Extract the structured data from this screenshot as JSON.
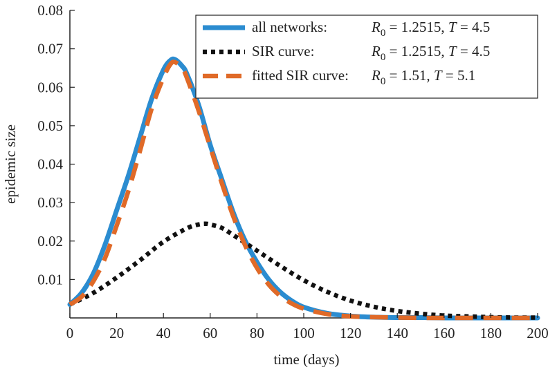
{
  "chart_data": {
    "type": "line",
    "title": "",
    "xlabel": "time (days)",
    "ylabel": "epidemic size",
    "xlim": [
      0,
      200
    ],
    "ylim": [
      0,
      0.08
    ],
    "x_ticks": [
      0,
      20,
      40,
      60,
      80,
      100,
      120,
      140,
      160,
      180,
      200
    ],
    "y_ticks": [
      0.01,
      0.02,
      0.03,
      0.04,
      0.05,
      0.06,
      0.07,
      0.08
    ],
    "x_tick_labels": [
      "0",
      "20",
      "40",
      "60",
      "80",
      "100",
      "120",
      "140",
      "160",
      "180",
      "200"
    ],
    "y_tick_labels": [
      "0.01",
      "0.02",
      "0.03",
      "0.04",
      "0.05",
      "0.06",
      "0.07",
      "0.08"
    ],
    "grid": false,
    "legend_position": "top-right",
    "series": [
      {
        "name": "all networks:",
        "param_r0": "1.2515",
        "param_t": "4.5",
        "color": "#2b8cd0",
        "style": "solid",
        "x": [
          0,
          5,
          10,
          15,
          20,
          25,
          30,
          35,
          40,
          43,
          45,
          48,
          50,
          55,
          60,
          65,
          70,
          75,
          80,
          85,
          90,
          95,
          100,
          110,
          120,
          130,
          140,
          150,
          160,
          170,
          180,
          190,
          200
        ],
        "y": [
          0.0035,
          0.0065,
          0.0115,
          0.019,
          0.028,
          0.037,
          0.047,
          0.057,
          0.0645,
          0.067,
          0.0672,
          0.0655,
          0.0635,
          0.0555,
          0.045,
          0.036,
          0.0272,
          0.02,
          0.0145,
          0.01,
          0.0067,
          0.0044,
          0.0028,
          0.0012,
          0.0005,
          0.0002,
          0.0001,
          0.0001,
          0.0,
          0.0,
          0.0,
          0.0,
          0.0
        ]
      },
      {
        "name": "SIR curve:",
        "param_r0": "1.2515",
        "param_t": "4.5",
        "color": "#111111",
        "style": "dotted",
        "x": [
          0,
          10,
          20,
          30,
          40,
          50,
          55,
          58,
          60,
          65,
          70,
          80,
          90,
          100,
          110,
          120,
          130,
          140,
          150,
          160,
          170,
          180,
          190,
          200
        ],
        "y": [
          0.0035,
          0.0065,
          0.0105,
          0.015,
          0.0198,
          0.0233,
          0.0243,
          0.0245,
          0.0243,
          0.0234,
          0.0215,
          0.0175,
          0.0135,
          0.0098,
          0.0068,
          0.0045,
          0.0029,
          0.0018,
          0.0011,
          0.0006,
          0.0004,
          0.0002,
          0.0001,
          0.0001
        ]
      },
      {
        "name": "fitted SIR curve:",
        "param_r0": "1.51",
        "param_t": "5.1",
        "color": "#e06a28",
        "style": "dashed",
        "x": [
          0,
          5,
          10,
          15,
          20,
          25,
          30,
          35,
          40,
          43,
          45,
          48,
          50,
          55,
          60,
          65,
          70,
          75,
          80,
          85,
          90,
          95,
          100,
          110,
          120,
          130,
          140,
          150,
          160,
          170,
          180,
          190,
          200
        ],
        "y": [
          0.0035,
          0.0055,
          0.0095,
          0.0155,
          0.024,
          0.033,
          0.0435,
          0.0545,
          0.0625,
          0.066,
          0.0665,
          0.065,
          0.0625,
          0.054,
          0.0445,
          0.035,
          0.0262,
          0.0188,
          0.013,
          0.0087,
          0.0057,
          0.0037,
          0.0024,
          0.001,
          0.0004,
          0.0002,
          0.0001,
          0.0,
          0.0,
          0.0,
          0.0,
          0.0,
          0.0
        ]
      }
    ]
  }
}
